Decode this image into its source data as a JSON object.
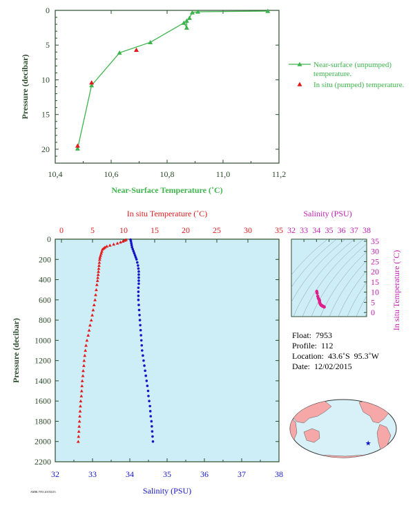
{
  "colors": {
    "near_surface": "#3cb44b",
    "in_situ": "#e31a1c",
    "temperature_profile": "#e31a1c",
    "salinity_profile": "#1414c8",
    "salinity_axis": "#c020b0",
    "temperature_axis": "#e31a1c",
    "axis_dark": "#2c4a2c",
    "plot_bg": "#cdeef7",
    "ts_bg": "#cdeef7",
    "ts_points": "#e0208a",
    "land": "#f6a8a8",
    "ocean": "#d8f0f8",
    "float_marker": "#1414c8"
  },
  "footer_code": "AMBL7953 20150213",
  "float_info": {
    "float": "Float:  7953",
    "profile": "Profile:  112",
    "location": "Location:  43.6˚S  95.3˚W",
    "date": "Date:  12/02/2015"
  },
  "chart_data": [
    {
      "id": "near_surface",
      "type": "line",
      "xlabel": "Near-Surface Temperature (˚C)",
      "ylabel": "Pressure (decibar)",
      "xlim": [
        10.4,
        11.2
      ],
      "ylim": [
        0,
        22
      ],
      "y_inverted": true,
      "xticks": [
        10.4,
        10.6,
        10.8,
        11.0,
        11.2
      ],
      "xtick_labels": [
        "10,4",
        "10,6",
        "10,8",
        "11,0",
        "11,2"
      ],
      "yticks": [
        0,
        5,
        10,
        15,
        20
      ],
      "legend_position": "right",
      "series": [
        {
          "name": "Near-surface (unpumped) temperature.",
          "marker": "triangle",
          "points": [
            [
              11.16,
              0.1
            ],
            [
              10.91,
              0.2
            ],
            [
              10.89,
              0.3
            ],
            [
              10.88,
              1.1
            ],
            [
              10.87,
              1.5
            ],
            [
              10.87,
              2.5
            ],
            [
              10.86,
              1.8
            ],
            [
              10.74,
              4.6
            ],
            [
              10.63,
              6.1
            ],
            [
              10.53,
              10.8
            ],
            [
              10.48,
              19.9
            ]
          ]
        },
        {
          "name": "In situ (pumped) temperature.",
          "marker": "triangle",
          "points": [
            [
              10.69,
              5.7
            ],
            [
              10.53,
              10.4
            ],
            [
              10.48,
              19.5
            ]
          ]
        }
      ]
    },
    {
      "id": "profile",
      "type": "scatter",
      "ylabel": "Pressure (decibar)",
      "ylim": [
        0,
        2200
      ],
      "y_inverted": true,
      "yticks": [
        0,
        200,
        400,
        600,
        800,
        1000,
        1200,
        1400,
        1600,
        1800,
        2000,
        2200
      ],
      "top_axis": {
        "label": "In situ Temperature (˚C)",
        "lim": [
          -1,
          35
        ],
        "ticks": [
          0,
          5,
          10,
          15,
          20,
          25,
          30,
          35
        ]
      },
      "bottom_axis": {
        "label": "Salinity (PSU)",
        "lim": [
          32,
          38
        ],
        "ticks": [
          32,
          33,
          34,
          35,
          36,
          37,
          38
        ]
      },
      "series": [
        {
          "name": "temperature",
          "marker": "triangle",
          "points": [
            [
              10.4,
              5
            ],
            [
              10.2,
              12
            ],
            [
              9.9,
              20
            ],
            [
              9.5,
              30
            ],
            [
              9.0,
              40
            ],
            [
              8.4,
              50
            ],
            [
              7.8,
              60
            ],
            [
              7.3,
              70
            ],
            [
              7.0,
              80
            ],
            [
              6.8,
              90
            ],
            [
              6.6,
              100
            ],
            [
              6.5,
              120
            ],
            [
              6.4,
              140
            ],
            [
              6.3,
              160
            ],
            [
              6.2,
              180
            ],
            [
              6.15,
              200
            ],
            [
              6.1,
              230
            ],
            [
              6.05,
              260
            ],
            [
              6.0,
              290
            ],
            [
              5.95,
              320
            ],
            [
              5.9,
              350
            ],
            [
              5.85,
              380
            ],
            [
              5.8,
              410
            ],
            [
              5.7,
              450
            ],
            [
              5.6,
              500
            ],
            [
              5.5,
              550
            ],
            [
              5.4,
              600
            ],
            [
              5.25,
              650
            ],
            [
              5.1,
              700
            ],
            [
              4.95,
              750
            ],
            [
              4.8,
              800
            ],
            [
              4.6,
              850
            ],
            [
              4.45,
              900
            ],
            [
              4.3,
              950
            ],
            [
              4.1,
              1000
            ],
            [
              3.95,
              1050
            ],
            [
              3.85,
              1100
            ],
            [
              3.75,
              1150
            ],
            [
              3.65,
              1200
            ],
            [
              3.6,
              1250
            ],
            [
              3.5,
              1300
            ],
            [
              3.45,
              1350
            ],
            [
              3.35,
              1400
            ],
            [
              3.3,
              1450
            ],
            [
              3.25,
              1500
            ],
            [
              3.2,
              1550
            ],
            [
              3.1,
              1600
            ],
            [
              3.05,
              1650
            ],
            [
              3.0,
              1700
            ],
            [
              2.95,
              1750
            ],
            [
              2.9,
              1800
            ],
            [
              2.85,
              1850
            ],
            [
              2.8,
              1900
            ],
            [
              2.75,
              1950
            ],
            [
              2.7,
              2000
            ]
          ]
        },
        {
          "name": "salinity",
          "marker": "circle",
          "points": [
            [
              34.02,
              5
            ],
            [
              34.03,
              20
            ],
            [
              34.04,
              40
            ],
            [
              34.05,
              60
            ],
            [
              34.06,
              80
            ],
            [
              34.08,
              100
            ],
            [
              34.1,
              120
            ],
            [
              34.12,
              140
            ],
            [
              34.14,
              160
            ],
            [
              34.16,
              180
            ],
            [
              34.18,
              200
            ],
            [
              34.2,
              230
            ],
            [
              34.22,
              260
            ],
            [
              34.23,
              290
            ],
            [
              34.24,
              320
            ],
            [
              34.24,
              350
            ],
            [
              34.24,
              380
            ],
            [
              34.24,
              410
            ],
            [
              34.24,
              440
            ],
            [
              34.23,
              480
            ],
            [
              34.23,
              520
            ],
            [
              34.23,
              560
            ],
            [
              34.23,
              600
            ],
            [
              34.24,
              650
            ],
            [
              34.25,
              700
            ],
            [
              34.26,
              750
            ],
            [
              34.27,
              800
            ],
            [
              34.28,
              850
            ],
            [
              34.29,
              900
            ],
            [
              34.3,
              950
            ],
            [
              34.31,
              1000
            ],
            [
              34.32,
              1050
            ],
            [
              34.33,
              1100
            ],
            [
              34.35,
              1150
            ],
            [
              34.37,
              1200
            ],
            [
              34.39,
              1250
            ],
            [
              34.41,
              1300
            ],
            [
              34.43,
              1350
            ],
            [
              34.45,
              1400
            ],
            [
              34.47,
              1450
            ],
            [
              34.49,
              1500
            ],
            [
              34.5,
              1550
            ],
            [
              34.52,
              1600
            ],
            [
              34.54,
              1650
            ],
            [
              34.55,
              1700
            ],
            [
              34.56,
              1750
            ],
            [
              34.58,
              1800
            ],
            [
              34.59,
              1850
            ],
            [
              34.6,
              1900
            ],
            [
              34.61,
              1950
            ],
            [
              34.62,
              2000
            ]
          ]
        }
      ]
    },
    {
      "id": "ts_diagram",
      "type": "scatter",
      "title": "Salinity (PSU)",
      "xlim": [
        32,
        38
      ],
      "xticks": [
        32,
        33,
        34,
        35,
        36,
        37,
        38
      ],
      "ylabel": "In situ Temperature (˚C)",
      "ylim": [
        -2,
        36
      ],
      "yticks": [
        0,
        5,
        10,
        15,
        20,
        25,
        30,
        35
      ],
      "points": [
        [
          34.02,
          10.4
        ],
        [
          34.05,
          9.5
        ],
        [
          34.1,
          8.0
        ],
        [
          34.15,
          7.0
        ],
        [
          34.2,
          6.4
        ],
        [
          34.24,
          6.0
        ],
        [
          34.24,
          5.5
        ],
        [
          34.25,
          5.0
        ],
        [
          34.28,
          4.5
        ],
        [
          34.32,
          4.0
        ],
        [
          34.37,
          3.6
        ],
        [
          34.43,
          3.3
        ],
        [
          34.5,
          3.1
        ],
        [
          34.56,
          2.9
        ],
        [
          34.62,
          2.7
        ],
        [
          34.6,
          2.8
        ],
        [
          34.55,
          3.0
        ],
        [
          34.45,
          3.4
        ]
      ]
    },
    {
      "id": "location_map",
      "type": "map",
      "marker": {
        "lat": -43.6,
        "lon": -95.3
      }
    }
  ]
}
